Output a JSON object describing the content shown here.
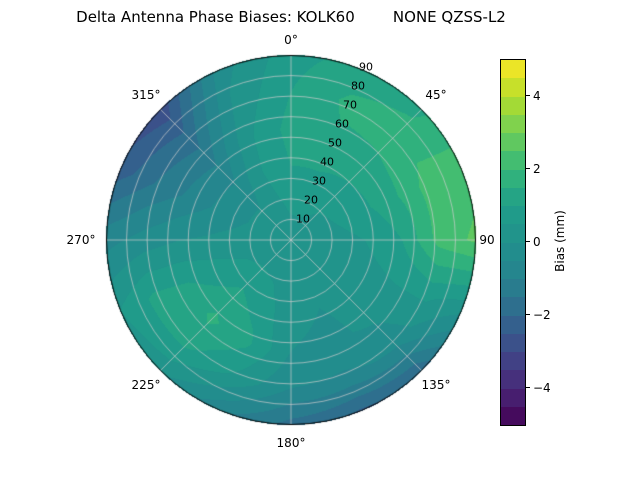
{
  "title": "Delta Antenna Phase Biases: KOLK60        NONE QZSS-L2",
  "chart_data": {
    "type": "heatmap",
    "projection": "polar",
    "title": "Delta Antenna Phase Biases: KOLK60        NONE QZSS-L2",
    "station": "KOLK60",
    "signal": "NONE QZSS-L2",
    "azimuth_tick_labels": [
      "0°",
      "45°",
      "90",
      "135°",
      "180°",
      "225°",
      "270°",
      "315°"
    ],
    "radial_tick_labels": [
      "10",
      "20",
      "30",
      "40",
      "50",
      "60",
      "70",
      "80",
      "90"
    ],
    "grid_on": true,
    "colorbar": {
      "label": "Bias (mm)",
      "range": [
        -5,
        5
      ],
      "level_step": 0.5,
      "ticks": [
        4,
        2,
        0,
        -2,
        -4
      ],
      "tick_labels": [
        "4",
        "2",
        "0",
        "−2",
        "−4"
      ],
      "colormap": "viridis",
      "colormap_stops": [
        "#440154",
        "#482878",
        "#3e4989",
        "#31688e",
        "#26828e",
        "#21918c",
        "#1f9e89",
        "#35b779",
        "#6ece58",
        "#b5de2b",
        "#fde725"
      ]
    },
    "grid": {
      "azimuth_deg": [
        0,
        22.5,
        45,
        67.5,
        90,
        112.5,
        135,
        157.5,
        180,
        202.5,
        225,
        247.5,
        270,
        292.5,
        315,
        337.5
      ],
      "radius_frac": [
        0,
        0.2,
        0.4,
        0.6,
        0.8,
        1
      ],
      "bias_mm": [
        [
          0.3,
          0.6,
          1.0,
          1.2,
          1.0,
          0.8
        ],
        [
          0.3,
          0.6,
          1.0,
          1.4,
          1.6,
          1.2
        ],
        [
          0.3,
          0.5,
          0.9,
          1.4,
          1.7,
          1.4
        ],
        [
          0.3,
          0.4,
          0.8,
          1.4,
          2.2,
          2.3
        ],
        [
          0.3,
          0.3,
          0.5,
          1.0,
          2.2,
          2.6
        ],
        [
          0.3,
          0.2,
          0.3,
          0.5,
          0.6,
          0.1
        ],
        [
          0.3,
          0.2,
          0.1,
          0.1,
          -0.4,
          -1.9
        ],
        [
          0.3,
          0.2,
          0.0,
          -0.1,
          -0.6,
          -2.1
        ],
        [
          0.3,
          0.2,
          0.1,
          0.0,
          -0.5,
          -1.7
        ],
        [
          0.3,
          0.4,
          0.8,
          1.1,
          0.4,
          -0.9
        ],
        [
          0.3,
          0.5,
          1.1,
          1.6,
          1.1,
          0.1
        ],
        [
          0.3,
          0.4,
          0.7,
          1.0,
          1.1,
          0.5
        ],
        [
          0.3,
          0.2,
          0.1,
          0.0,
          -0.3,
          -0.7
        ],
        [
          0.3,
          0.1,
          -0.3,
          -0.9,
          -1.5,
          -2.3
        ],
        [
          0.3,
          0.1,
          -0.4,
          -1.1,
          -1.9,
          -2.9
        ],
        [
          0.3,
          0.4,
          0.5,
          0.4,
          0.1,
          -0.2
        ]
      ]
    }
  }
}
